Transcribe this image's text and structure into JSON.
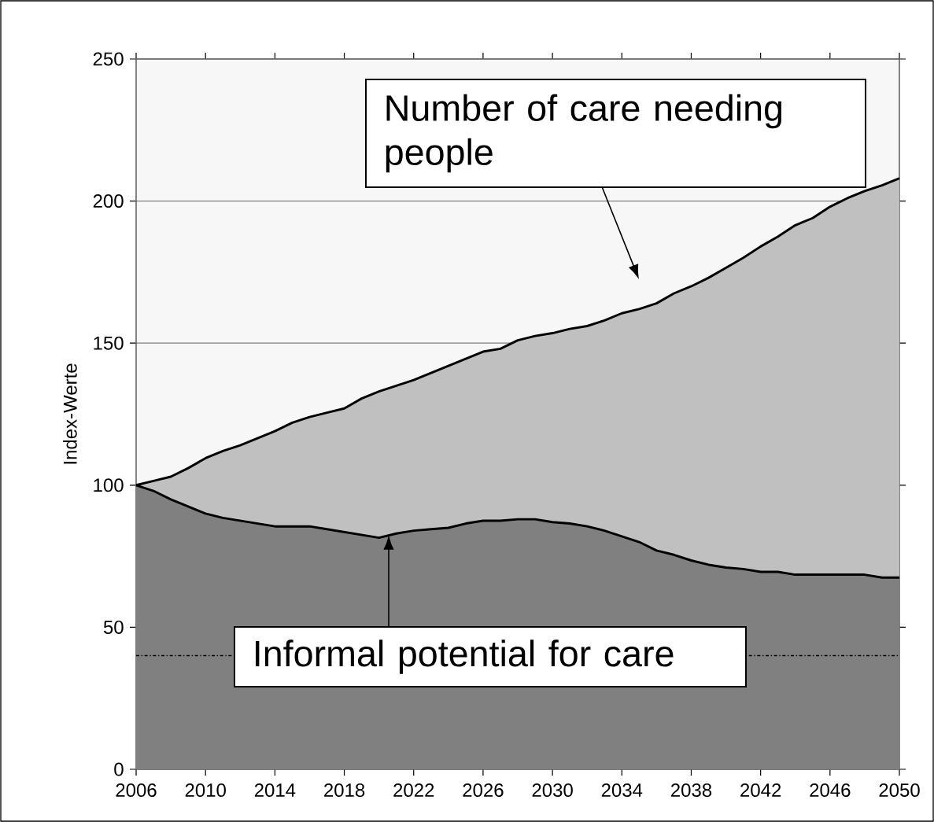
{
  "chart_data": {
    "type": "area",
    "ylabel": "Index-Werte",
    "x": [
      2006,
      2007,
      2008,
      2009,
      2010,
      2011,
      2012,
      2013,
      2014,
      2015,
      2016,
      2017,
      2018,
      2019,
      2020,
      2021,
      2022,
      2023,
      2024,
      2025,
      2026,
      2027,
      2028,
      2029,
      2030,
      2031,
      2032,
      2033,
      2034,
      2035,
      2036,
      2037,
      2038,
      2039,
      2040,
      2041,
      2042,
      2043,
      2044,
      2045,
      2046,
      2047,
      2048,
      2049,
      2050
    ],
    "series": [
      {
        "color": "#c0c0c0",
        "values": [
          100,
          101.5,
          103,
          106,
          109.5,
          112,
          114,
          116.5,
          119,
          122,
          124,
          125.5,
          127,
          130.5,
          133,
          135,
          137,
          139.5,
          142,
          144.5,
          147,
          148,
          151,
          152.5,
          153.5,
          155,
          156,
          158,
          160.5,
          162,
          164,
          167.5,
          170,
          173,
          176.5,
          180,
          184,
          187.5,
          191.5,
          194,
          198,
          201,
          203.5,
          205.5,
          208
        ]
      },
      {
        "color": "#808080",
        "values": [
          100,
          98,
          95,
          92.5,
          90,
          88.5,
          87.5,
          86.5,
          85.5,
          85.5,
          85.5,
          84.5,
          83.5,
          82.5,
          81.5,
          83,
          84,
          84.5,
          85,
          86.5,
          87.5,
          87.5,
          88,
          88,
          87,
          86.5,
          85.5,
          84,
          82,
          80,
          77,
          75.5,
          73.5,
          72,
          71,
          70.5,
          69.5,
          69.5,
          68.5,
          68.5,
          68.5,
          68.5,
          68.5,
          67.5,
          67.5
        ]
      }
    ],
    "xlim": [
      2006,
      2050
    ],
    "xticks": [
      2006,
      2010,
      2014,
      2018,
      2022,
      2026,
      2030,
      2034,
      2038,
      2042,
      2046,
      2050
    ],
    "ylim": [
      0,
      250
    ],
    "yticks": [
      0,
      50,
      100,
      150,
      200,
      250
    ],
    "grid": "y",
    "ref_lines": [
      {
        "axis": "y",
        "value": 40,
        "line_style": "dashed"
      }
    ],
    "annotations": [
      "Number of care needing people",
      "Informal potential for care"
    ]
  }
}
